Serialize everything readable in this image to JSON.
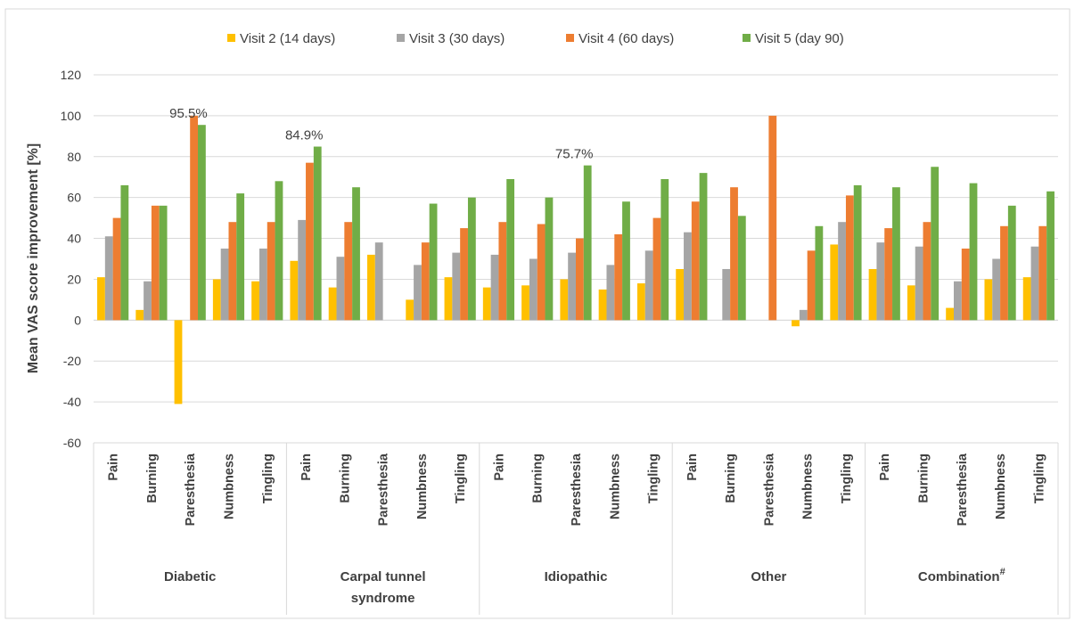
{
  "chart_data": {
    "type": "bar",
    "ylabel": "Mean VAS score improvement [%]",
    "ylim": [
      -60,
      120
    ],
    "yticks": [
      -60,
      -40,
      -20,
      0,
      20,
      40,
      60,
      80,
      100,
      120
    ],
    "grid": true,
    "legend_position": "top",
    "groups": [
      {
        "label": "Diabetic",
        "superscript": "",
        "categories": [
          "Pain",
          "Burning",
          "Paresthesia",
          "Numbness",
          "Tingling"
        ]
      },
      {
        "label": "Carpal tunnel syndrome",
        "superscript": "",
        "categories": [
          "Pain",
          "Burning",
          "Paresthesia",
          "Numbness",
          "Tingling"
        ]
      },
      {
        "label": "Idiopathic",
        "superscript": "",
        "categories": [
          "Pain",
          "Burning",
          "Paresthesia",
          "Numbness",
          "Tingling"
        ]
      },
      {
        "label": "Other",
        "superscript": "",
        "categories": [
          "Pain",
          "Burning",
          "Paresthesia",
          "Numbness",
          "Tingling"
        ]
      },
      {
        "label": "Combination",
        "superscript": "#",
        "categories": [
          "Pain",
          "Burning",
          "Paresthesia",
          "Numbness",
          "Tingling"
        ]
      }
    ],
    "series": [
      {
        "name": "Visit 2 (14 days)",
        "color": "#FFC000",
        "values": [
          21,
          5,
          -41,
          20,
          19,
          29,
          16,
          32,
          10,
          21,
          16,
          17,
          20,
          15,
          18,
          25,
          null,
          null,
          -3,
          37,
          25,
          17,
          6,
          20,
          21
        ]
      },
      {
        "name": "Visit 3 (30 days)",
        "color": "#A5A5A5",
        "values": [
          41,
          19,
          null,
          35,
          35,
          49,
          31,
          38,
          27,
          33,
          32,
          30,
          33,
          27,
          34,
          43,
          25,
          null,
          5,
          48,
          38,
          36,
          19,
          30,
          36
        ]
      },
      {
        "name": "Visit 4 (60 days)",
        "color": "#ED7D31",
        "values": [
          50,
          56,
          100,
          48,
          48,
          77,
          48,
          null,
          38,
          45,
          48,
          47,
          40,
          42,
          50,
          58,
          65,
          100,
          34,
          61,
          45,
          48,
          35,
          46,
          46
        ]
      },
      {
        "name": "Visit 5 (day 90)",
        "color": "#70AD47",
        "values": [
          66,
          56,
          95.5,
          62,
          68,
          84.9,
          65,
          null,
          57,
          60,
          69,
          60,
          75.7,
          58,
          69,
          72,
          51,
          null,
          46,
          66,
          65,
          75,
          67,
          56,
          63
        ]
      }
    ],
    "annotations": [
      {
        "text": "95.5%",
        "group": 0,
        "category": 2,
        "series": 3
      },
      {
        "text": "84.9%",
        "group": 1,
        "category": 0,
        "series": 3
      },
      {
        "text": "75.7%",
        "group": 2,
        "category": 2,
        "series": 3
      }
    ]
  }
}
